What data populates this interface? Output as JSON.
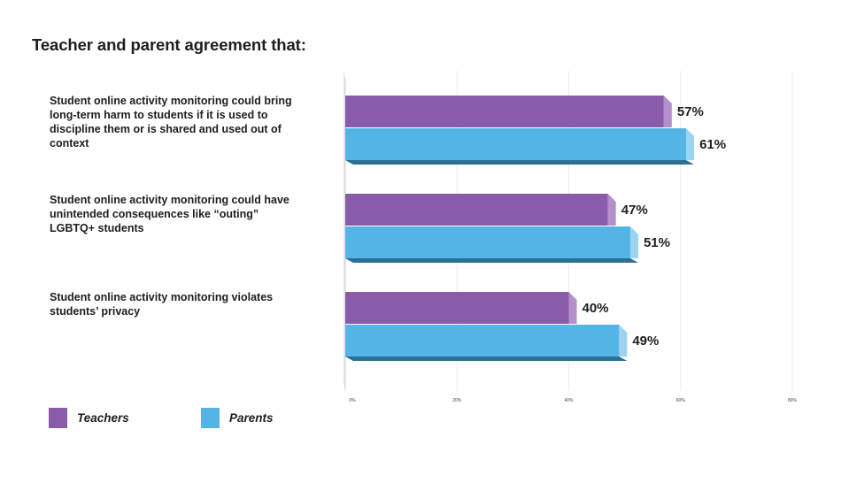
{
  "chart_data": {
    "type": "bar",
    "orientation": "horizontal",
    "title": "Teacher and parent agreement that:",
    "categories": [
      "Student online activity monitoring could bring long-term harm to students if it is used to discipline them or is shared and used out of context",
      "Student online activity monitoring could have unintended consequences like “outing” LGBTQ+ students",
      "Student online activity monitoring violates students’ privacy"
    ],
    "series": [
      {
        "name": "Teachers",
        "values": [
          57,
          47,
          40
        ],
        "labels": [
          "57%",
          "47%",
          "40%"
        ],
        "color": "#8b5bab",
        "color_side": "#b48fcb"
      },
      {
        "name": "Parents",
        "values": [
          61,
          51,
          49
        ],
        "labels": [
          "61%",
          "51%",
          "49%"
        ],
        "color": "#55b4e6",
        "color_side": "#9bd3f1"
      }
    ],
    "xlim": [
      0,
      80
    ],
    "xticks": [
      "0%",
      "20%",
      "40%",
      "60%",
      "80%"
    ],
    "xtick_values": [
      0,
      20,
      40,
      60,
      80
    ],
    "grid": true,
    "legend_position": "bottom-left"
  }
}
